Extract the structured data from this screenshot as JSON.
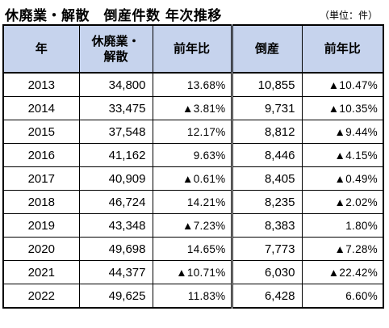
{
  "title": "休廃業・解散　倒産件数 年次推移",
  "unit_note": "（単位：件）",
  "table": {
    "headers": [
      "年",
      "休廃業・\n解散",
      "前年比",
      "倒産",
      "前年比"
    ],
    "rows": [
      [
        "2013",
        "34,800",
        "13.68%",
        "10,855",
        "▲10.47%"
      ],
      [
        "2014",
        "33,475",
        "▲3.81%",
        "9,731",
        "▲10.35%"
      ],
      [
        "2015",
        "37,548",
        "12.17%",
        "8,812",
        "▲9.44%"
      ],
      [
        "2016",
        "41,162",
        "9.63%",
        "8,446",
        "▲4.15%"
      ],
      [
        "2017",
        "40,909",
        "▲0.61%",
        "8,405",
        "▲0.49%"
      ],
      [
        "2018",
        "46,724",
        "14.21%",
        "8,235",
        "▲2.02%"
      ],
      [
        "2019",
        "43,348",
        "▲7.23%",
        "8,383",
        "1.80%"
      ],
      [
        "2020",
        "49,698",
        "14.65%",
        "7,773",
        "▲7.28%"
      ],
      [
        "2021",
        "44,377",
        "▲10.71%",
        "6,030",
        "▲22.42%"
      ],
      [
        "2022",
        "49,625",
        "11.83%",
        "6,428",
        "6.60%"
      ]
    ]
  }
}
